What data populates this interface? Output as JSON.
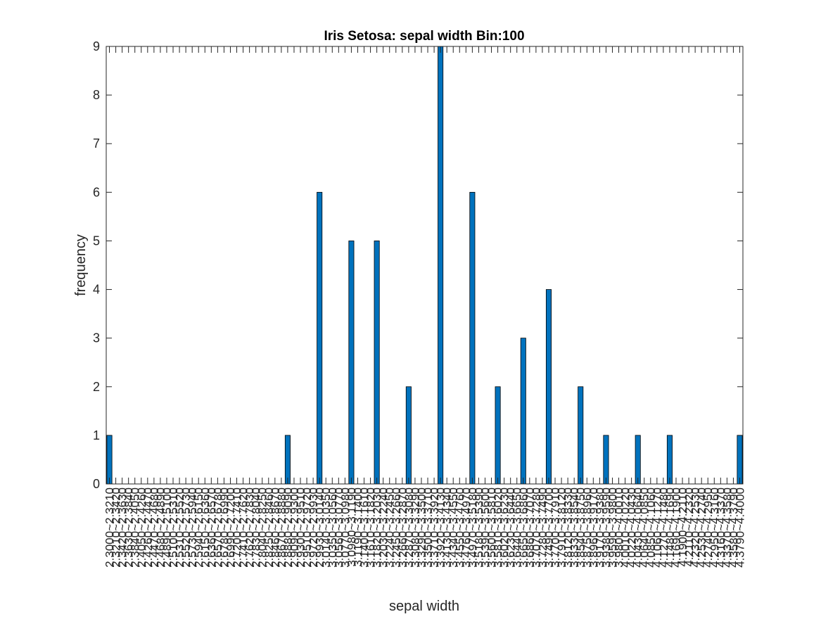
{
  "chart_data": {
    "type": "bar",
    "title": "Iris Setosa: sepal width Bin:100",
    "xlabel": "sepal width",
    "ylabel": "frequency",
    "ylim": [
      0,
      9
    ],
    "yticks": [
      0,
      1,
      2,
      3,
      4,
      5,
      6,
      7,
      8,
      9
    ],
    "grid": false,
    "bar_color": "#0072BD",
    "bin_start": 2.3,
    "bin_end": 4.4,
    "bin_count": 100,
    "categories": [
      "2.3000~2.3210",
      "2.3210~2.3420",
      "2.3420~2.3630",
      "2.3630~2.3840",
      "2.3840~2.4050",
      "2.4050~2.4260",
      "2.4260~2.4470",
      "2.4470~2.4680",
      "2.4680~2.4890",
      "2.4890~2.5100",
      "2.5100~2.5310",
      "2.5310~2.5520",
      "2.5520~2.5730",
      "2.5730~2.5940",
      "2.5940~2.6150",
      "2.6150~2.6360",
      "2.6360~2.6570",
      "2.6570~2.6780",
      "2.6780~2.6990",
      "2.6990~2.7200",
      "2.7200~2.7410",
      "2.7410~2.7620",
      "2.7620~2.7830",
      "2.7830~2.8040",
      "2.8040~2.8250",
      "2.8250~2.8460",
      "2.8460~2.8670",
      "2.8670~2.8880",
      "2.8880~2.9090",
      "2.9090~2.9300",
      "2.9300~2.9510",
      "2.9510~2.9720",
      "2.9720~2.9930",
      "2.9930~3.0140",
      "3.0140~3.0350",
      "3.0350~3.0560",
      "3.0560~3.0770",
      "3.0770~3.0980",
      "3.0980~3.1190",
      "3.1190~3.1400",
      "3.1400~3.1610",
      "3.1610~3.1820",
      "3.1820~3.2030",
      "3.2030~3.2240",
      "3.2240~3.2450",
      "3.2450~3.2660",
      "3.2660~3.2870",
      "3.2870~3.3080",
      "3.3080~3.3290",
      "3.3290~3.3500",
      "3.3500~3.3710",
      "3.3710~3.3920",
      "3.3920~3.4130",
      "3.4130~3.4340",
      "3.4340~3.4550",
      "3.4550~3.4760",
      "3.4760~3.4970",
      "3.4970~3.5180",
      "3.5180~3.5390",
      "3.5390~3.5600",
      "3.5600~3.5810",
      "3.5810~3.6020",
      "3.6020~3.6230",
      "3.6230~3.6440",
      "3.6440~3.6650",
      "3.6650~3.6860",
      "3.6860~3.7070",
      "3.7070~3.7280",
      "3.7280~3.7490",
      "3.7490~3.7700",
      "3.7700~3.7910",
      "3.7910~3.8120",
      "3.8120~3.8330",
      "3.8330~3.8540",
      "3.8540~3.8750",
      "3.8750~3.8960",
      "3.8960~3.9170",
      "3.9170~3.9380",
      "3.9380~3.9590",
      "3.9590~3.9800",
      "3.9800~4.0010",
      "4.0010~4.0220",
      "4.0220~4.0430",
      "4.0430~4.0640",
      "4.0640~4.0850",
      "4.0850~4.1060",
      "4.1060~4.1270",
      "4.1270~4.1480",
      "4.1480~4.1690",
      "4.1690~4.1900",
      "4.1900~4.2110",
      "4.2110~4.2320",
      "4.2320~4.2530",
      "4.2530~4.2740",
      "4.2740~4.2950",
      "4.2950~4.3160",
      "4.3160~4.3370",
      "4.3370~4.3580",
      "4.3580~4.3790",
      "4.3790~4.4000"
    ],
    "values": [
      1,
      0,
      0,
      0,
      0,
      0,
      0,
      0,
      0,
      0,
      0,
      0,
      0,
      0,
      0,
      0,
      0,
      0,
      0,
      0,
      0,
      0,
      0,
      0,
      0,
      0,
      0,
      0,
      1,
      0,
      0,
      0,
      0,
      6,
      0,
      0,
      0,
      0,
      5,
      0,
      0,
      0,
      5,
      0,
      0,
      0,
      0,
      2,
      0,
      0,
      0,
      0,
      9,
      0,
      0,
      0,
      0,
      6,
      0,
      0,
      0,
      2,
      0,
      0,
      0,
      3,
      0,
      0,
      0,
      4,
      0,
      0,
      0,
      0,
      2,
      0,
      0,
      0,
      1,
      0,
      0,
      0,
      0,
      1,
      0,
      0,
      0,
      0,
      1,
      0,
      0,
      0,
      0,
      0,
      0,
      0,
      0,
      0,
      0,
      1
    ]
  }
}
